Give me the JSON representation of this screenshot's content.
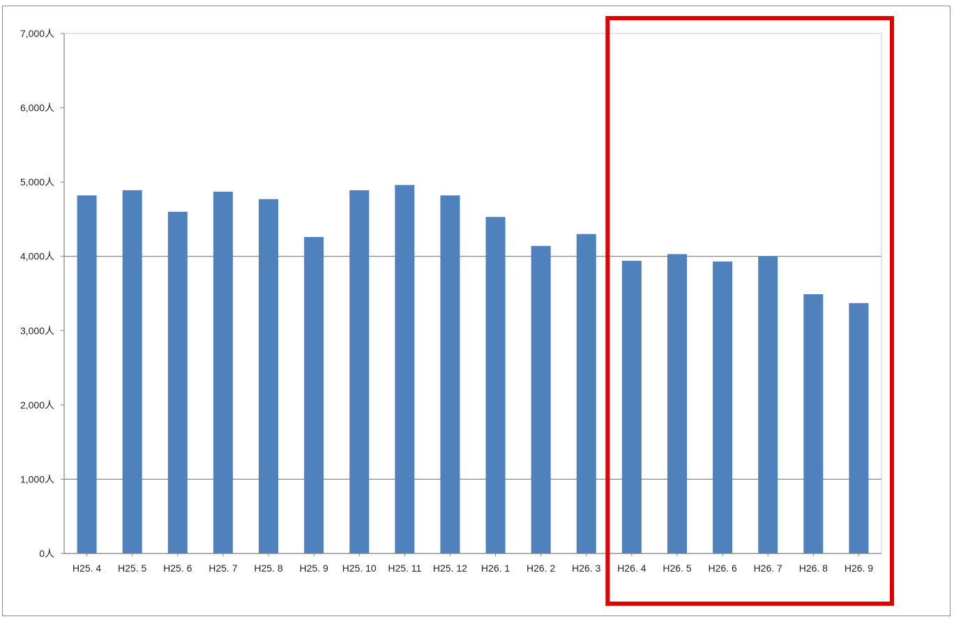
{
  "chart_data": {
    "type": "bar",
    "categories": [
      "H25. 4",
      "H25. 5",
      "H25. 6",
      "H25. 7",
      "H25. 8",
      "H25. 9",
      "H25. 10",
      "H25. 11",
      "H25. 12",
      "H26. 1",
      "H26. 2",
      "H26. 3",
      "H26. 4",
      "H26. 5",
      "H26. 6",
      "H26. 7",
      "H26. 8",
      "H26. 9"
    ],
    "values": [
      4820,
      4890,
      4600,
      4870,
      4770,
      4260,
      4890,
      4960,
      4820,
      4530,
      4140,
      4300,
      3940,
      4030,
      3930,
      4000,
      3490,
      3370
    ],
    "y_ticks": [
      {
        "value": 0,
        "label": "0人"
      },
      {
        "value": 1000,
        "label": "1,000人"
      },
      {
        "value": 2000,
        "label": "2,000人"
      },
      {
        "value": 3000,
        "label": "3,000人"
      },
      {
        "value": 4000,
        "label": "4,000人"
      },
      {
        "value": 5000,
        "label": "5,000人"
      },
      {
        "value": 6000,
        "label": "6,000人"
      },
      {
        "value": 7000,
        "label": "7,000人"
      }
    ],
    "ylim": [
      0,
      7000
    ],
    "gridlines_at": [
      1000,
      4000
    ],
    "highlight": {
      "from": "H26. 4",
      "to": "H26. 9",
      "color": "#e00000"
    },
    "colors": {
      "bar": "#4f81bd",
      "grid": "#6b6b6b",
      "axis": "#7f7f7f",
      "tick_label": "#222222"
    }
  }
}
